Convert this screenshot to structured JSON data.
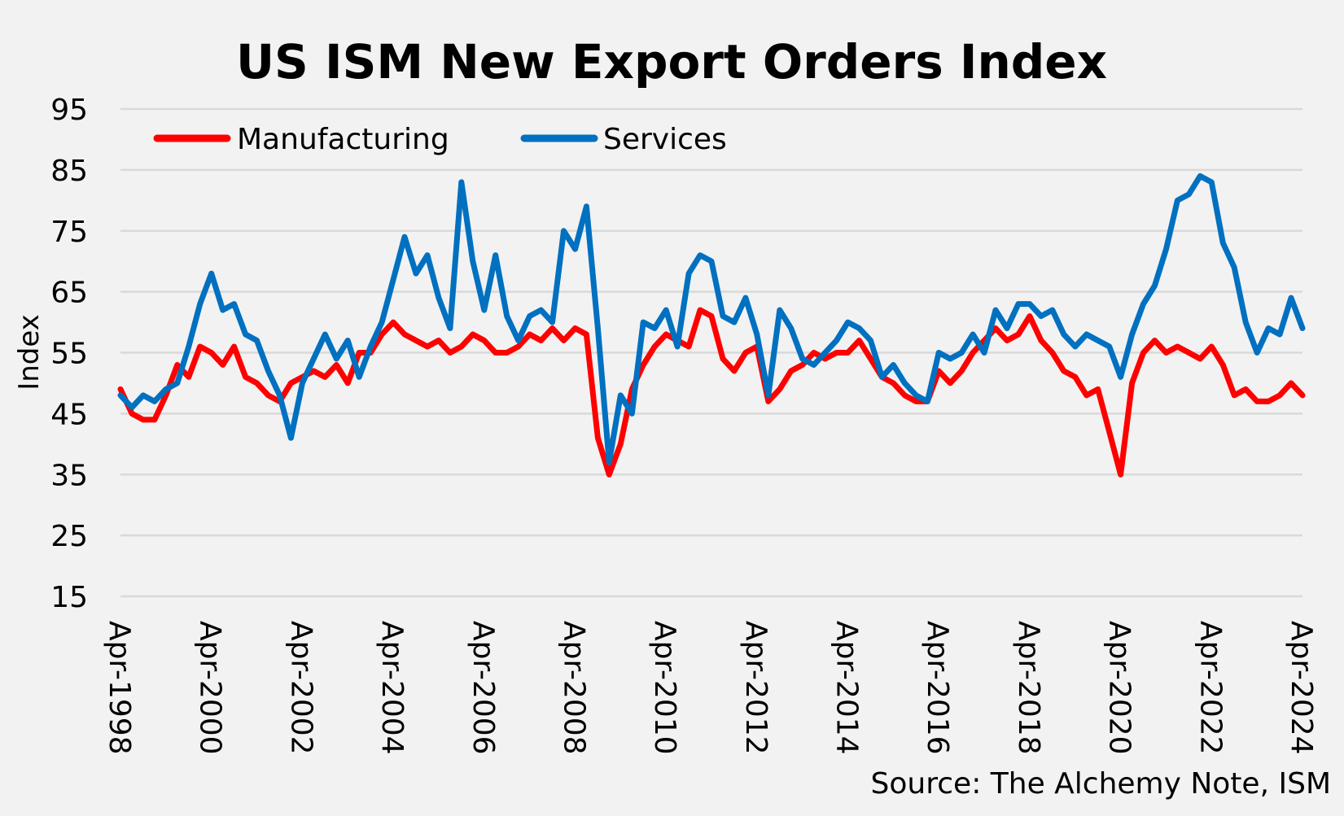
{
  "chart_data": {
    "type": "line",
    "title": "US ISM New Export Orders Index",
    "ylabel": "Index",
    "xlabel": "",
    "ylim": [
      15,
      95
    ],
    "yticks": [
      "95",
      "85",
      "75",
      "65",
      "55",
      "45",
      "35",
      "25",
      "15"
    ],
    "xticks": [
      "Apr-1998",
      "Apr-2000",
      "Apr-2002",
      "Apr-2004",
      "Apr-2006",
      "Apr-2008",
      "Apr-2010",
      "Apr-2012",
      "Apr-2014",
      "Apr-2016",
      "Apr-2018",
      "Apr-2020",
      "Apr-2022",
      "Apr-2024"
    ],
    "x_range": [
      "Apr-1998",
      "Apr-2024"
    ],
    "grid": "horizontal",
    "legend_position": "top-left",
    "source": "Source: The Alchemy Note, ISM",
    "series": [
      {
        "name": "Manufacturing",
        "color": "#ff0000",
        "points": [
          [
            "1998-04",
            49
          ],
          [
            "1998-07",
            45
          ],
          [
            "1998-10",
            44
          ],
          [
            "1999-01",
            44
          ],
          [
            "1999-04",
            48
          ],
          [
            "1999-07",
            53
          ],
          [
            "1999-10",
            51
          ],
          [
            "2000-01",
            56
          ],
          [
            "2000-04",
            55
          ],
          [
            "2000-07",
            53
          ],
          [
            "2000-10",
            56
          ],
          [
            "2001-01",
            51
          ],
          [
            "2001-04",
            50
          ],
          [
            "2001-07",
            48
          ],
          [
            "2001-10",
            47
          ],
          [
            "2002-01",
            50
          ],
          [
            "2002-04",
            51
          ],
          [
            "2002-07",
            52
          ],
          [
            "2002-10",
            51
          ],
          [
            "2003-01",
            53
          ],
          [
            "2003-04",
            50
          ],
          [
            "2003-07",
            55
          ],
          [
            "2003-10",
            55
          ],
          [
            "2004-01",
            58
          ],
          [
            "2004-04",
            60
          ],
          [
            "2004-07",
            58
          ],
          [
            "2004-10",
            57
          ],
          [
            "2005-01",
            56
          ],
          [
            "2005-04",
            57
          ],
          [
            "2005-07",
            55
          ],
          [
            "2005-10",
            56
          ],
          [
            "2006-01",
            58
          ],
          [
            "2006-04",
            57
          ],
          [
            "2006-07",
            55
          ],
          [
            "2006-10",
            55
          ],
          [
            "2007-01",
            56
          ],
          [
            "2007-04",
            58
          ],
          [
            "2007-07",
            57
          ],
          [
            "2007-10",
            59
          ],
          [
            "2008-01",
            57
          ],
          [
            "2008-04",
            59
          ],
          [
            "2008-07",
            58
          ],
          [
            "2008-10",
            41
          ],
          [
            "2009-01",
            35
          ],
          [
            "2009-04",
            40
          ],
          [
            "2009-07",
            49
          ],
          [
            "2009-10",
            53
          ],
          [
            "2010-01",
            56
          ],
          [
            "2010-04",
            58
          ],
          [
            "2010-07",
            57
          ],
          [
            "2010-10",
            56
          ],
          [
            "2011-01",
            62
          ],
          [
            "2011-04",
            61
          ],
          [
            "2011-07",
            54
          ],
          [
            "2011-10",
            52
          ],
          [
            "2012-01",
            55
          ],
          [
            "2012-04",
            56
          ],
          [
            "2012-07",
            47
          ],
          [
            "2012-10",
            49
          ],
          [
            "2013-01",
            52
          ],
          [
            "2013-04",
            53
          ],
          [
            "2013-07",
            55
          ],
          [
            "2013-10",
            54
          ],
          [
            "2014-01",
            55
          ],
          [
            "2014-04",
            55
          ],
          [
            "2014-07",
            57
          ],
          [
            "2014-10",
            54
          ],
          [
            "2015-01",
            51
          ],
          [
            "2015-04",
            50
          ],
          [
            "2015-07",
            48
          ],
          [
            "2015-10",
            47
          ],
          [
            "2016-01",
            47
          ],
          [
            "2016-04",
            52
          ],
          [
            "2016-07",
            50
          ],
          [
            "2016-10",
            52
          ],
          [
            "2017-01",
            55
          ],
          [
            "2017-04",
            57
          ],
          [
            "2017-07",
            59
          ],
          [
            "2017-10",
            57
          ],
          [
            "2018-01",
            58
          ],
          [
            "2018-04",
            61
          ],
          [
            "2018-07",
            57
          ],
          [
            "2018-10",
            55
          ],
          [
            "2019-01",
            52
          ],
          [
            "2019-04",
            51
          ],
          [
            "2019-07",
            48
          ],
          [
            "2019-10",
            49
          ],
          [
            "2020-01",
            42
          ],
          [
            "2020-04",
            35
          ],
          [
            "2020-07",
            50
          ],
          [
            "2020-10",
            55
          ],
          [
            "2021-01",
            57
          ],
          [
            "2021-04",
            55
          ],
          [
            "2021-07",
            56
          ],
          [
            "2021-10",
            55
          ],
          [
            "2022-01",
            54
          ],
          [
            "2022-04",
            56
          ],
          [
            "2022-07",
            53
          ],
          [
            "2022-10",
            48
          ],
          [
            "2023-01",
            49
          ],
          [
            "2023-04",
            47
          ],
          [
            "2023-07",
            47
          ],
          [
            "2023-10",
            48
          ],
          [
            "2024-01",
            50
          ],
          [
            "2024-04",
            48
          ]
        ]
      },
      {
        "name": "Services",
        "color": "#0070c0",
        "points": [
          [
            "1998-04",
            48
          ],
          [
            "1998-07",
            46
          ],
          [
            "1998-10",
            48
          ],
          [
            "1999-01",
            47
          ],
          [
            "1999-04",
            49
          ],
          [
            "1999-07",
            50
          ],
          [
            "1999-10",
            56
          ],
          [
            "2000-01",
            63
          ],
          [
            "2000-04",
            68
          ],
          [
            "2000-07",
            62
          ],
          [
            "2000-10",
            63
          ],
          [
            "2001-01",
            58
          ],
          [
            "2001-04",
            57
          ],
          [
            "2001-07",
            52
          ],
          [
            "2001-10",
            48
          ],
          [
            "2002-01",
            41
          ],
          [
            "2002-04",
            50
          ],
          [
            "2002-07",
            54
          ],
          [
            "2002-10",
            58
          ],
          [
            "2003-01",
            54
          ],
          [
            "2003-04",
            57
          ],
          [
            "2003-07",
            51
          ],
          [
            "2003-10",
            56
          ],
          [
            "2004-01",
            60
          ],
          [
            "2004-04",
            67
          ],
          [
            "2004-07",
            74
          ],
          [
            "2004-10",
            68
          ],
          [
            "2005-01",
            71
          ],
          [
            "2005-04",
            64
          ],
          [
            "2005-07",
            59
          ],
          [
            "2005-10",
            83
          ],
          [
            "2006-01",
            70
          ],
          [
            "2006-04",
            62
          ],
          [
            "2006-07",
            71
          ],
          [
            "2006-10",
            61
          ],
          [
            "2007-01",
            57
          ],
          [
            "2007-04",
            61
          ],
          [
            "2007-07",
            62
          ],
          [
            "2007-10",
            60
          ],
          [
            "2008-01",
            75
          ],
          [
            "2008-04",
            72
          ],
          [
            "2008-07",
            79
          ],
          [
            "2008-10",
            59
          ],
          [
            "2009-01",
            37
          ],
          [
            "2009-04",
            48
          ],
          [
            "2009-07",
            45
          ],
          [
            "2009-10",
            60
          ],
          [
            "2010-01",
            59
          ],
          [
            "2010-04",
            62
          ],
          [
            "2010-07",
            56
          ],
          [
            "2010-10",
            68
          ],
          [
            "2011-01",
            71
          ],
          [
            "2011-04",
            70
          ],
          [
            "2011-07",
            61
          ],
          [
            "2011-10",
            60
          ],
          [
            "2012-01",
            64
          ],
          [
            "2012-04",
            58
          ],
          [
            "2012-07",
            48
          ],
          [
            "2012-10",
            62
          ],
          [
            "2013-01",
            59
          ],
          [
            "2013-04",
            54
          ],
          [
            "2013-07",
            53
          ],
          [
            "2013-10",
            55
          ],
          [
            "2014-01",
            57
          ],
          [
            "2014-04",
            60
          ],
          [
            "2014-07",
            59
          ],
          [
            "2014-10",
            57
          ],
          [
            "2015-01",
            51
          ],
          [
            "2015-04",
            53
          ],
          [
            "2015-07",
            50
          ],
          [
            "2015-10",
            48
          ],
          [
            "2016-01",
            47
          ],
          [
            "2016-04",
            55
          ],
          [
            "2016-07",
            54
          ],
          [
            "2016-10",
            55
          ],
          [
            "2017-01",
            58
          ],
          [
            "2017-04",
            55
          ],
          [
            "2017-07",
            62
          ],
          [
            "2017-10",
            59
          ],
          [
            "2018-01",
            63
          ],
          [
            "2018-04",
            63
          ],
          [
            "2018-07",
            61
          ],
          [
            "2018-10",
            62
          ],
          [
            "2019-01",
            58
          ],
          [
            "2019-04",
            56
          ],
          [
            "2019-07",
            58
          ],
          [
            "2019-10",
            57
          ],
          [
            "2020-01",
            56
          ],
          [
            "2020-04",
            51
          ],
          [
            "2020-07",
            58
          ],
          [
            "2020-10",
            63
          ],
          [
            "2021-01",
            66
          ],
          [
            "2021-04",
            72
          ],
          [
            "2021-07",
            80
          ],
          [
            "2021-10",
            81
          ],
          [
            "2022-01",
            84
          ],
          [
            "2022-04",
            83
          ],
          [
            "2022-07",
            73
          ],
          [
            "2022-10",
            69
          ],
          [
            "2023-01",
            60
          ],
          [
            "2023-04",
            55
          ],
          [
            "2023-07",
            59
          ],
          [
            "2023-10",
            58
          ],
          [
            "2024-01",
            64
          ],
          [
            "2024-04",
            59
          ]
        ]
      }
    ]
  }
}
